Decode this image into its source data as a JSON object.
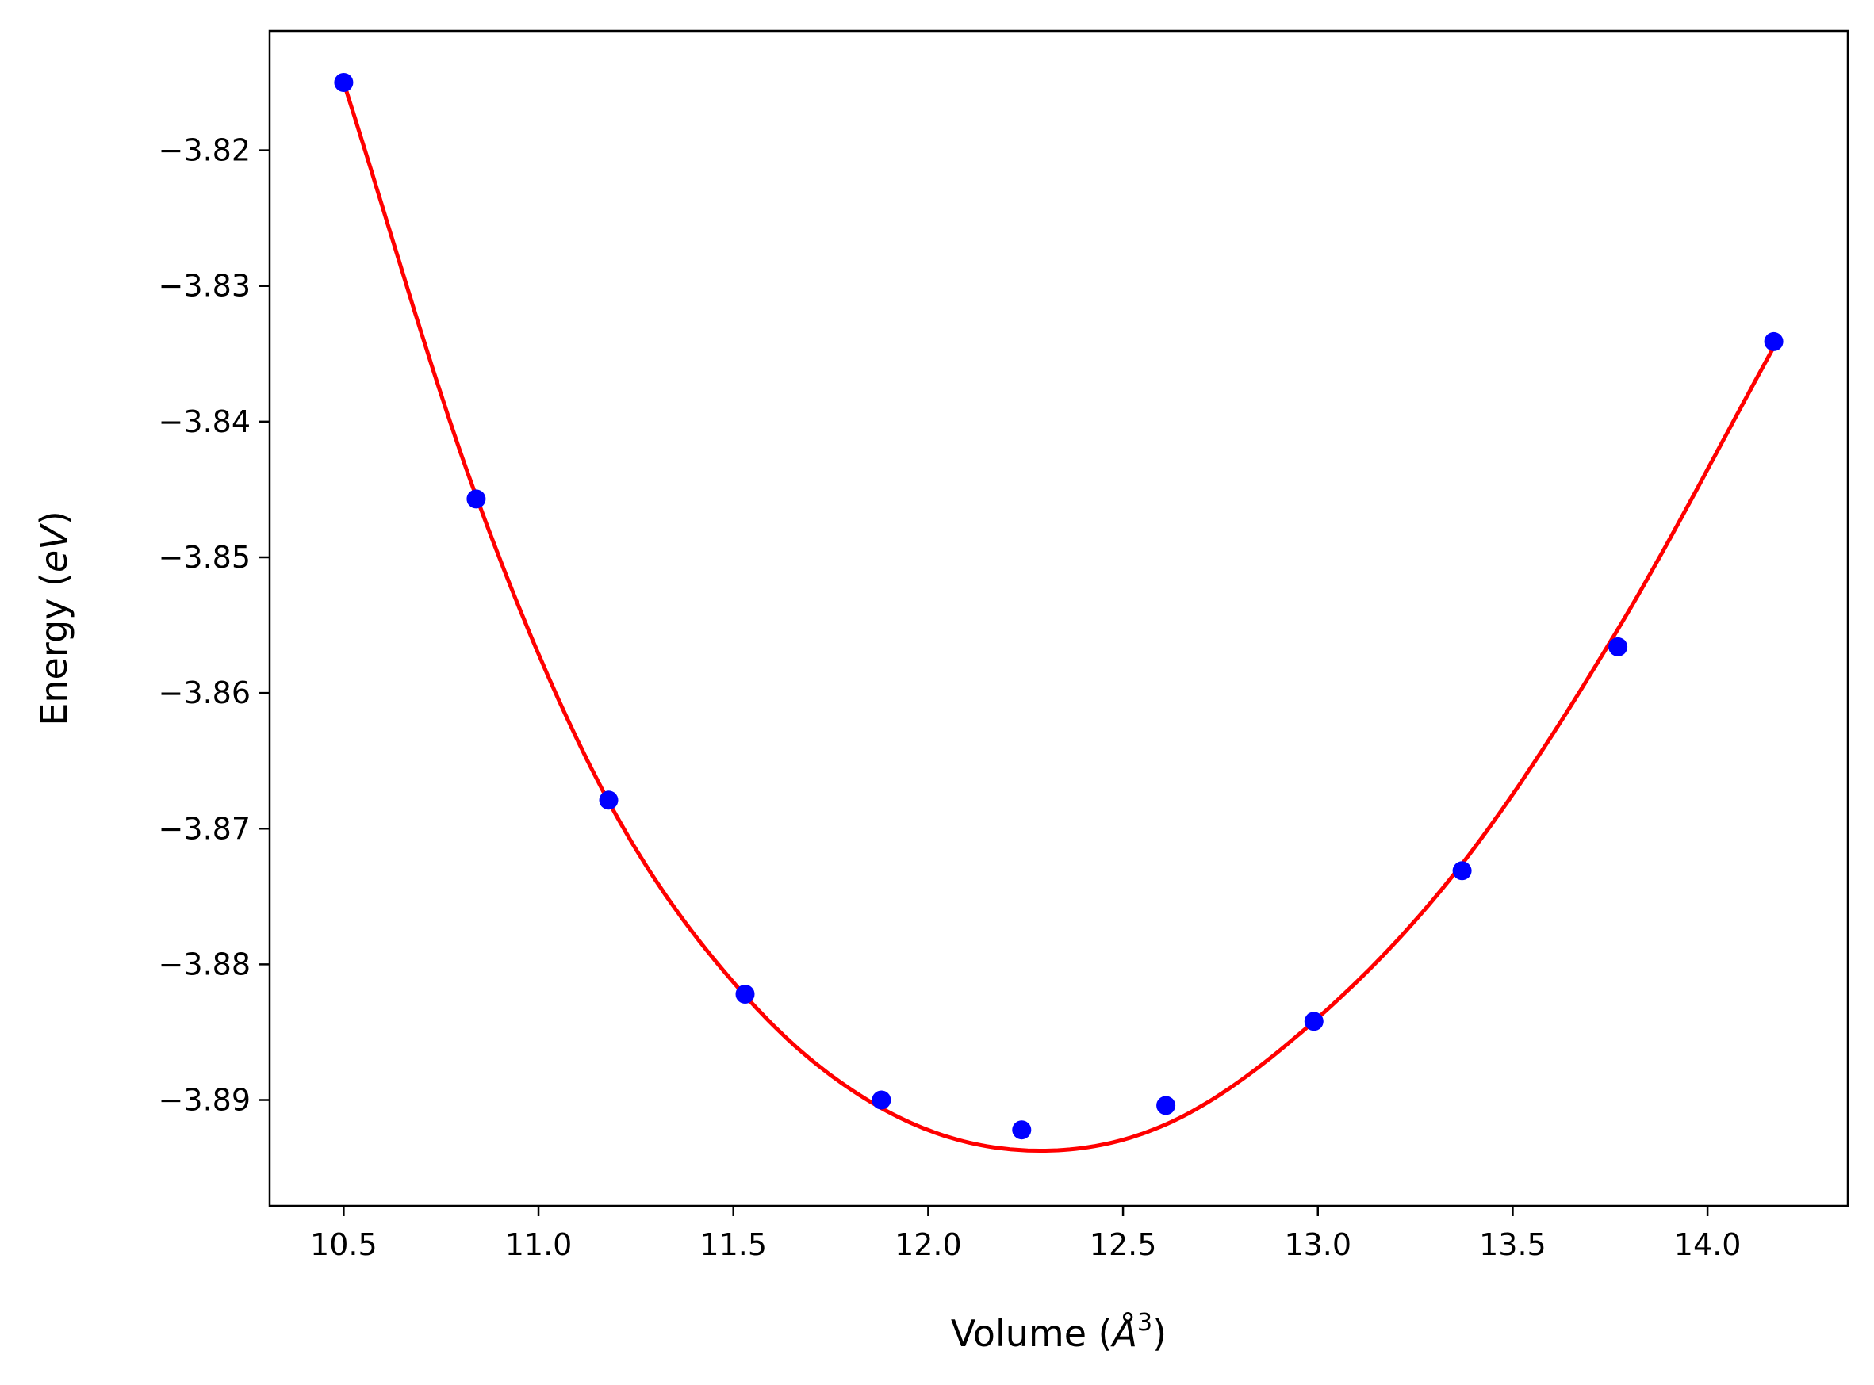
{
  "chart_data": {
    "type": "scatter",
    "title": "",
    "xlabel": {
      "prefix": "Volume (",
      "symbol": "Å",
      "sup": "3",
      "suffix": ")"
    },
    "ylabel": {
      "prefix": "Energy (",
      "symbol": "eV",
      "suffix": ")"
    },
    "xlim": [
      10.31,
      14.36
    ],
    "ylim": [
      -3.8978,
      -3.8112
    ],
    "xticks": [
      10.5,
      11.0,
      11.5,
      12.0,
      12.5,
      13.0,
      13.5,
      14.0
    ],
    "xtick_labels": [
      "10.5",
      "11.0",
      "11.5",
      "12.0",
      "12.5",
      "13.0",
      "13.5",
      "14.0"
    ],
    "yticks": [
      -3.82,
      -3.83,
      -3.84,
      -3.85,
      -3.86,
      -3.87,
      -3.88,
      -3.89
    ],
    "ytick_labels": [
      "−3.82",
      "−3.83",
      "−3.84",
      "−3.85",
      "−3.86",
      "−3.87",
      "−3.88",
      "−3.89"
    ],
    "grid": false,
    "colors": {
      "points": "#0000ff",
      "fit": "#ff0000",
      "axes": "#000000"
    },
    "series": [
      {
        "kind": "points",
        "x": [
          10.5,
          10.84,
          11.18,
          11.53,
          11.88,
          12.24,
          12.61,
          12.99,
          13.37,
          13.77,
          14.17
        ],
        "y": [
          -3.815,
          -3.8457,
          -3.8679,
          -3.8822,
          -3.89,
          -3.8922,
          -3.8904,
          -3.8842,
          -3.8731,
          -3.8566,
          -3.8341
        ]
      },
      {
        "kind": "fit-curve",
        "x": [
          10.5,
          10.84,
          11.18,
          11.53,
          11.88,
          12.24,
          12.61,
          12.99,
          13.37,
          13.77,
          14.17
        ],
        "y": [
          -3.815,
          -3.8455,
          -3.868,
          -3.8823,
          -3.8906,
          -3.8937,
          -3.8918,
          -3.8842,
          -3.8726,
          -3.8553,
          -3.8345
        ]
      }
    ]
  }
}
